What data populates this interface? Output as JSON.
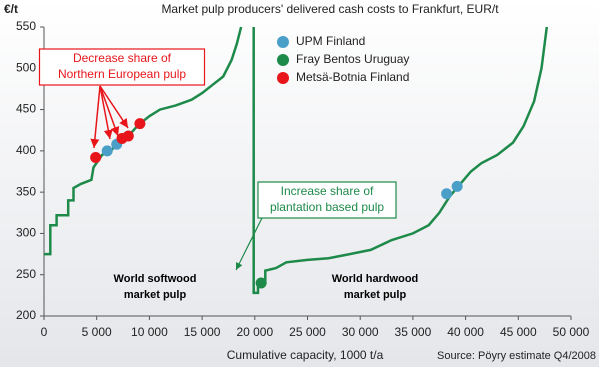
{
  "chart_data": {
    "type": "step-cost-curve",
    "title": "Market pulp producers' delivered cash costs to Frankfurt, EUR/t",
    "y_label": "€/t",
    "x_label": "Cumulative capacity, 1000 t/a",
    "source": "Source: Pöyry estimate Q4/2008",
    "ylim": [
      200,
      550
    ],
    "yticks": [
      200,
      250,
      300,
      350,
      400,
      450,
      500,
      550
    ],
    "xlim": [
      0,
      50000
    ],
    "xticks": [
      0,
      {
        "value": 5000,
        "label": "5 000"
      },
      {
        "value": 10000,
        "label": "10 000"
      },
      {
        "value": 15000,
        "label": "15 000"
      },
      {
        "value": 20000,
        "label": "20 000"
      },
      {
        "value": 25000,
        "label": "25 000"
      },
      {
        "value": 30000,
        "label": "30 000"
      },
      {
        "value": 35000,
        "label": "35 000"
      },
      {
        "value": 40000,
        "label": "40 000"
      },
      {
        "value": 45000,
        "label": "45 000"
      },
      {
        "value": 50000,
        "label": "50 000"
      }
    ],
    "curve": {
      "color": "#1e8a4a",
      "x": [
        0,
        600,
        600,
        1200,
        1200,
        2300,
        2300,
        2800,
        2800,
        3500,
        4500,
        4700,
        5500,
        6500,
        7000,
        8000,
        8500,
        9000,
        10000,
        11000,
        12500,
        14000,
        15000,
        16000,
        17000,
        17800,
        18300,
        18700,
        19000,
        19900,
        19900,
        20300,
        20300,
        21000,
        21000,
        22000,
        23000,
        25000,
        27000,
        29000,
        31000,
        33000,
        35000,
        36500,
        37500,
        38500,
        39500,
        40500,
        41500,
        43000,
        44500,
        45500,
        46500,
        47200,
        47700
      ],
      "values": [
        275,
        275,
        310,
        310,
        322,
        322,
        340,
        340,
        355,
        360,
        365,
        380,
        395,
        402,
        412,
        418,
        425,
        432,
        442,
        450,
        455,
        462,
        470,
        480,
        490,
        510,
        530,
        550,
        null,
        550,
        228,
        228,
        240,
        240,
        255,
        258,
        265,
        268,
        270,
        275,
        280,
        292,
        300,
        310,
        325,
        345,
        360,
        375,
        385,
        395,
        410,
        430,
        460,
        500,
        550
      ]
    },
    "series": [
      {
        "name": "UPM Finland",
        "color": "#4a9fc8",
        "x": [
          6000,
          6900,
          38200,
          39200
        ],
        "values": [
          400,
          408,
          348,
          357
        ]
      },
      {
        "name": "Fray Bentos Uruguay",
        "color": "#1e8a4a",
        "x": [
          20600
        ],
        "values": [
          240
        ]
      },
      {
        "name": "Metsä-Botnia Finland",
        "color": "#e8161b",
        "x": [
          4900,
          7400,
          8000,
          9100
        ],
        "values": [
          392,
          415,
          418,
          433
        ]
      }
    ],
    "annotations": [
      {
        "lines": [
          "Decrease share of",
          "Northern European pulp"
        ],
        "color": "#e8161b"
      },
      {
        "lines": [
          "Increase share of",
          "plantation based pulp"
        ],
        "color": "#1e8a4a"
      },
      {
        "lines": [
          "World softwood",
          "market pulp"
        ],
        "color": "#000000"
      },
      {
        "lines": [
          "World hardwood",
          "market pulp"
        ],
        "color": "#000000"
      }
    ]
  }
}
